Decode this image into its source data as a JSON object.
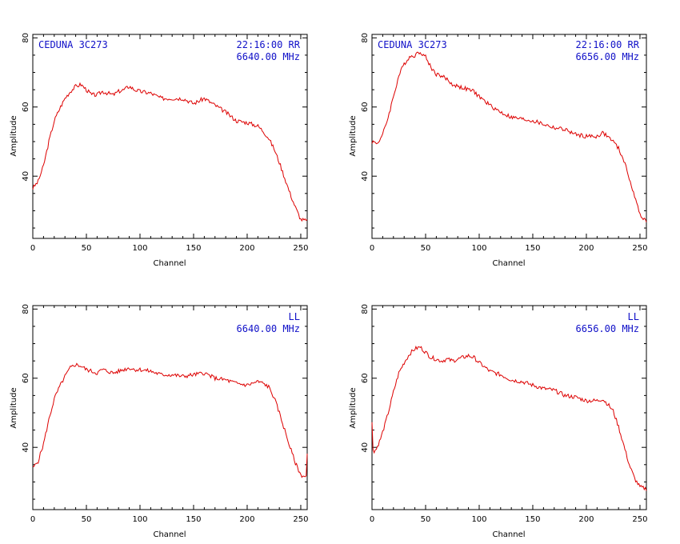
{
  "chart_data": [
    {
      "type": "line",
      "station": "CEDUNA 3C273",
      "time_pol": "22:16:00  RR",
      "freq": "6640.00 MHz",
      "xlabel": "Channel",
      "ylabel": "Amplitude",
      "xlim": [
        0,
        256
      ],
      "ylim": [
        22,
        81
      ],
      "xticks": [
        "0",
        "50",
        "100",
        "150",
        "200",
        "250"
      ],
      "yticks": [
        "40",
        "60",
        "80"
      ],
      "color": "#dd0000",
      "x": [
        0,
        5,
        10,
        15,
        20,
        25,
        30,
        35,
        40,
        45,
        50,
        55,
        60,
        65,
        70,
        75,
        80,
        85,
        90,
        95,
        100,
        110,
        120,
        130,
        140,
        150,
        160,
        170,
        180,
        190,
        200,
        210,
        215,
        220,
        225,
        230,
        235,
        240,
        245,
        250,
        256
      ],
      "y": [
        36.5,
        38.5,
        43,
        50,
        56,
        59.5,
        62.5,
        64.5,
        66,
        66.5,
        65,
        63.5,
        63.5,
        64.5,
        64,
        63.5,
        64.5,
        65,
        66,
        65,
        64.5,
        64,
        62.5,
        62.5,
        62.5,
        61,
        62.5,
        60.5,
        58.5,
        56,
        55.5,
        54.5,
        53,
        51,
        48,
        44,
        39.5,
        35,
        31,
        27.5,
        27
      ]
    },
    {
      "type": "line",
      "station": "CEDUNA 3C273",
      "time_pol": "22:16:00  RR",
      "freq": "6656.00 MHz",
      "xlabel": "Channel",
      "ylabel": "Amplitude",
      "xlim": [
        0,
        256
      ],
      "ylim": [
        22,
        81
      ],
      "xticks": [
        "0",
        "50",
        "100",
        "150",
        "200",
        "250"
      ],
      "yticks": [
        "40",
        "60",
        "80"
      ],
      "color": "#dd0000",
      "x": [
        0,
        5,
        10,
        15,
        20,
        25,
        30,
        35,
        40,
        45,
        50,
        55,
        60,
        65,
        70,
        75,
        80,
        85,
        90,
        95,
        100,
        110,
        120,
        130,
        140,
        150,
        160,
        170,
        180,
        190,
        200,
        210,
        215,
        220,
        225,
        230,
        235,
        240,
        245,
        250,
        256
      ],
      "y": [
        50,
        49.5,
        52,
        57,
        63,
        69,
        72.5,
        74.5,
        75,
        76,
        74.5,
        71.5,
        69.5,
        69,
        68,
        66.5,
        66,
        65.5,
        65,
        64.5,
        63,
        60.5,
        58.5,
        57,
        56.5,
        56,
        55,
        54,
        53.5,
        52,
        51.5,
        51.5,
        52.5,
        51.5,
        50,
        48,
        44.5,
        39.5,
        34,
        29,
        27
      ]
    },
    {
      "type": "line",
      "station": "",
      "time_pol": "LL",
      "freq": "6640.00 MHz",
      "xlabel": "Channel",
      "ylabel": "Amplitude",
      "xlim": [
        0,
        256
      ],
      "ylim": [
        22,
        81
      ],
      "xticks": [
        "0",
        "50",
        "100",
        "150",
        "200",
        "250"
      ],
      "yticks": [
        "40",
        "60",
        "80"
      ],
      "color": "#dd0000",
      "x": [
        0,
        5,
        10,
        15,
        20,
        25,
        30,
        35,
        40,
        45,
        50,
        55,
        60,
        65,
        70,
        75,
        80,
        85,
        90,
        95,
        100,
        110,
        120,
        130,
        140,
        150,
        160,
        170,
        180,
        190,
        200,
        210,
        215,
        220,
        225,
        230,
        235,
        240,
        245,
        250,
        255,
        256
      ],
      "y": [
        34,
        36,
        41,
        48,
        54,
        57.5,
        60.5,
        63,
        64,
        63.5,
        62.5,
        62,
        61.5,
        62.5,
        62,
        61.5,
        62,
        62.5,
        63,
        62.5,
        62.5,
        62,
        61,
        61,
        60.5,
        61,
        61.5,
        60,
        59.5,
        58.5,
        58,
        59,
        58.5,
        57.5,
        54.5,
        50,
        45,
        40,
        35.5,
        32,
        31.5,
        38
      ]
    },
    {
      "type": "line",
      "station": "",
      "time_pol": "LL",
      "freq": "6656.00 MHz",
      "xlabel": "Channel",
      "ylabel": "Amplitude",
      "xlim": [
        0,
        256
      ],
      "ylim": [
        22,
        81
      ],
      "xticks": [
        "0",
        "50",
        "100",
        "150",
        "200",
        "250"
      ],
      "yticks": [
        "40",
        "60",
        "80"
      ],
      "color": "#dd0000",
      "x": [
        0,
        1,
        2,
        4,
        8,
        12,
        16,
        20,
        25,
        30,
        35,
        40,
        45,
        50,
        55,
        60,
        65,
        70,
        75,
        80,
        85,
        90,
        95,
        100,
        110,
        120,
        130,
        140,
        150,
        160,
        170,
        180,
        190,
        200,
        210,
        215,
        220,
        225,
        230,
        235,
        240,
        245,
        250,
        256
      ],
      "y": [
        47,
        39.5,
        39,
        39.5,
        42.5,
        46.5,
        51,
        56,
        61.5,
        64.5,
        67,
        68.5,
        69,
        67.5,
        66,
        65.5,
        65,
        65.5,
        65,
        65.5,
        66,
        66.5,
        66,
        64.5,
        62,
        61,
        59.5,
        59,
        58,
        57,
        56.5,
        55,
        54.5,
        53.5,
        53.5,
        54,
        52.5,
        50.5,
        46,
        40.5,
        35,
        31,
        28.5,
        28
      ]
    }
  ]
}
